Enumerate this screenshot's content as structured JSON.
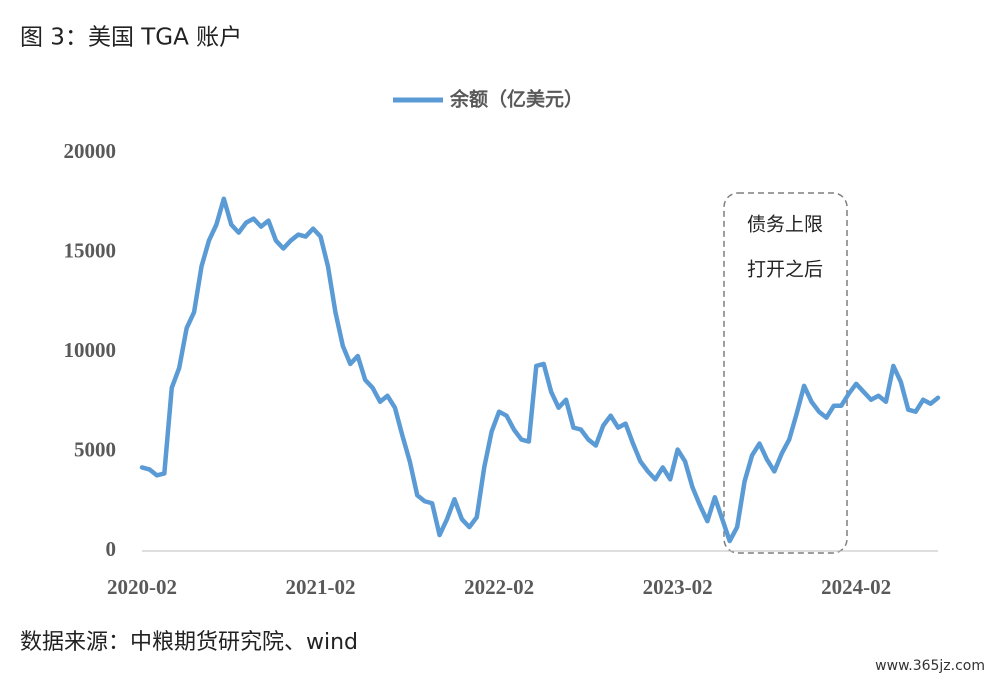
{
  "chart_data": {
    "type": "line",
    "title": "图 3：美国 TGA 账户",
    "source": "数据来源：中粮期货研究院、wind",
    "watermark": "www.365jz.com",
    "annotations": [
      "债务上限",
      "打开之后"
    ],
    "categories": [
      "2020-02",
      null,
      null,
      null,
      null,
      null,
      null,
      null,
      null,
      null,
      null,
      null,
      null,
      null,
      null,
      null,
      null,
      null,
      null,
      null,
      null,
      null,
      null,
      null,
      "2021-02",
      null,
      null,
      null,
      null,
      null,
      null,
      null,
      null,
      null,
      null,
      null,
      null,
      null,
      null,
      null,
      null,
      null,
      null,
      null,
      null,
      null,
      null,
      null,
      "2022-02",
      null,
      null,
      null,
      null,
      null,
      null,
      null,
      null,
      null,
      null,
      null,
      null,
      null,
      null,
      null,
      null,
      null,
      null,
      null,
      null,
      null,
      null,
      null,
      "2023-02",
      null,
      null,
      null,
      null,
      null,
      null,
      null,
      null,
      null,
      null,
      null,
      null,
      null,
      null,
      null,
      null,
      null,
      null,
      null,
      null,
      null,
      null,
      null,
      "2024-02",
      null,
      null,
      null,
      null,
      null,
      null,
      null,
      null,
      null,
      null,
      null
    ],
    "series": [
      {
        "name": "余额（亿美元）",
        "color": "#5b9bd5",
        "values": [
          4200,
          4100,
          3800,
          3900,
          8200,
          9200,
          11200,
          12000,
          14300,
          15600,
          16400,
          17700,
          16400,
          16000,
          16500,
          16700,
          16300,
          16600,
          15600,
          15200,
          15600,
          15900,
          15800,
          16200,
          15800,
          14300,
          12000,
          10300,
          9400,
          9800,
          8600,
          8200,
          7500,
          7800,
          7200,
          5800,
          4500,
          2800,
          2500,
          2400,
          800,
          1600,
          2600,
          1600,
          1200,
          1700,
          4200,
          6000,
          7000,
          6800,
          6100,
          5600,
          5500,
          9300,
          9400,
          8000,
          7200,
          7600,
          6200,
          6100,
          5600,
          5300,
          6300,
          6800,
          6200,
          6400,
          5400,
          4500,
          4000,
          3600,
          4200,
          3600,
          5100,
          4500,
          3200,
          2300,
          1500,
          2700,
          1600,
          500,
          1200,
          3500,
          4800,
          5400,
          4600,
          4000,
          4900,
          5600,
          6900,
          8300,
          7500,
          7000,
          6700,
          7300,
          7300,
          7900,
          8400,
          8000,
          7600,
          7800,
          7500,
          9300,
          8500,
          7100,
          7000,
          7600,
          7400,
          7700
        ]
      }
    ],
    "ylim": [
      0,
      20000
    ],
    "yticks": [
      0,
      5000,
      10000,
      15000,
      20000
    ],
    "grid": false
  }
}
